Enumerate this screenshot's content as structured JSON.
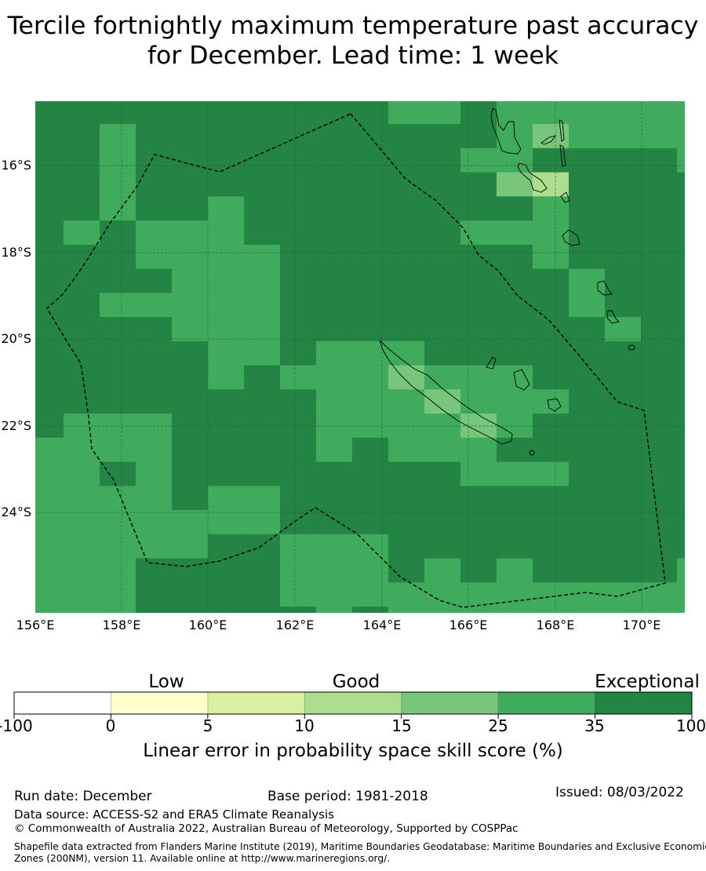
{
  "title": "Tercile fortnightly maximum temperature past accuracy for December. Lead time: 1 week",
  "map": {
    "lon_ticks": [
      "156°E",
      "158°E",
      "160°E",
      "162°E",
      "164°E",
      "166°E",
      "168°E",
      "170°E"
    ],
    "lat_ticks": [
      "16°S",
      "18°S",
      "20°S",
      "22°S",
      "24°S"
    ],
    "category_colors": {
      "3": "#238443",
      "2": "#41ab5d",
      "1": "#78c679",
      "0": "#addd8e"
    },
    "category_meaning": {
      "3": "35-100",
      "2": "25-35",
      "1": "15-25",
      "0": "10-15"
    },
    "grid_rows": [
      "3333333333223222222",
      "3323333333333212222",
      "3323333333332233332",
      "3323333333333103333",
      "3323323333333323333",
      "3232223333332223333",
      "3332222333333323333",
      "3333222333333332333",
      "3322222333333332333",
      "3333222333333333233",
      "3333322322233333333",
      "3333323222122233333",
      "3333333322212223333",
      "3222333322221233333",
      "2222333323222333333",
      "2232333333332223333",
      "2222322333333333333",
      "2222222333333333333",
      "2222233222333333333",
      "2223333222323233332",
      "2223333222222222222",
      "2223333323222222222"
    ]
  },
  "colorbar": {
    "categories": [
      {
        "label": "Low"
      },
      {
        "label": "Good"
      },
      {
        "label": "Exceptional"
      }
    ],
    "bins": [
      {
        "from": "-100",
        "to": "0",
        "color": "#ffffff"
      },
      {
        "from": "0",
        "to": "5",
        "color": "#ffffcc"
      },
      {
        "from": "5",
        "to": "10",
        "color": "#d9f0a3"
      },
      {
        "from": "10",
        "to": "15",
        "color": "#addd8e"
      },
      {
        "from": "15",
        "to": "25",
        "color": "#78c679"
      },
      {
        "from": "25",
        "to": "35",
        "color": "#41ab5d"
      },
      {
        "from": "35",
        "to": "100",
        "color": "#238443"
      }
    ],
    "ticks": [
      "-100",
      "0",
      "5",
      "10",
      "15",
      "25",
      "35",
      "100"
    ],
    "label": "Linear error in probability space skill score (%)"
  },
  "footer": {
    "run_date": "Run date: December",
    "base_period": "Base period: 1981-2018",
    "issued": "Issued: 08/03/2022",
    "data_source": "Data source: ACCESS-S2 and ERA5 Climate Reanalysis",
    "copyright": "© Commonwealth of Australia 2022, Australian Bureau of Meteorology, Supported by COSPPac",
    "shapefile_line1": "Shapefile data extracted from Flanders Marine Institute (2019), Maritime Boundaries Geodatabase: Maritime Boundaries and Exclusive Economic",
    "shapefile_line2": "Zones (200NM), version 11. Available online at http://www.marineregions.org/."
  }
}
